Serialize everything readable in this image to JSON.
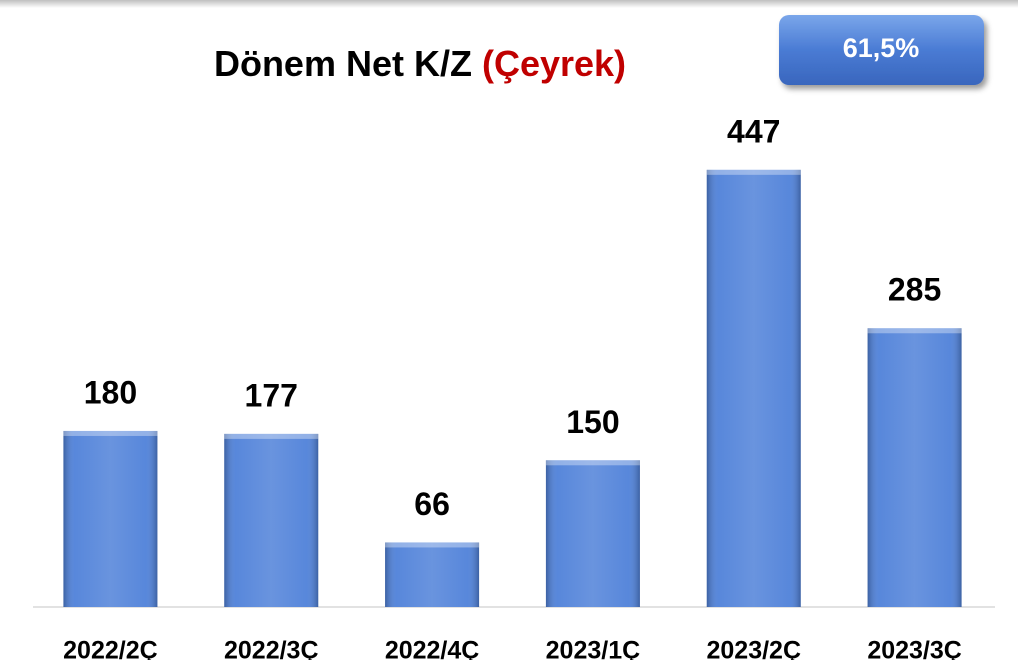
{
  "chart_data": {
    "type": "bar",
    "title": "Dönem Net K/Z",
    "title_suffix": "(Çeyrek)",
    "annotation": "61,5%",
    "categories": [
      "2022/2Ç",
      "2022/3Ç",
      "2022/4Ç",
      "2023/1Ç",
      "2023/2Ç",
      "2023/3Ç"
    ],
    "values": [
      180,
      177,
      66,
      150,
      447,
      285
    ],
    "color": "#4f81d9",
    "ylim": [
      0,
      500
    ],
    "grid": false
  }
}
